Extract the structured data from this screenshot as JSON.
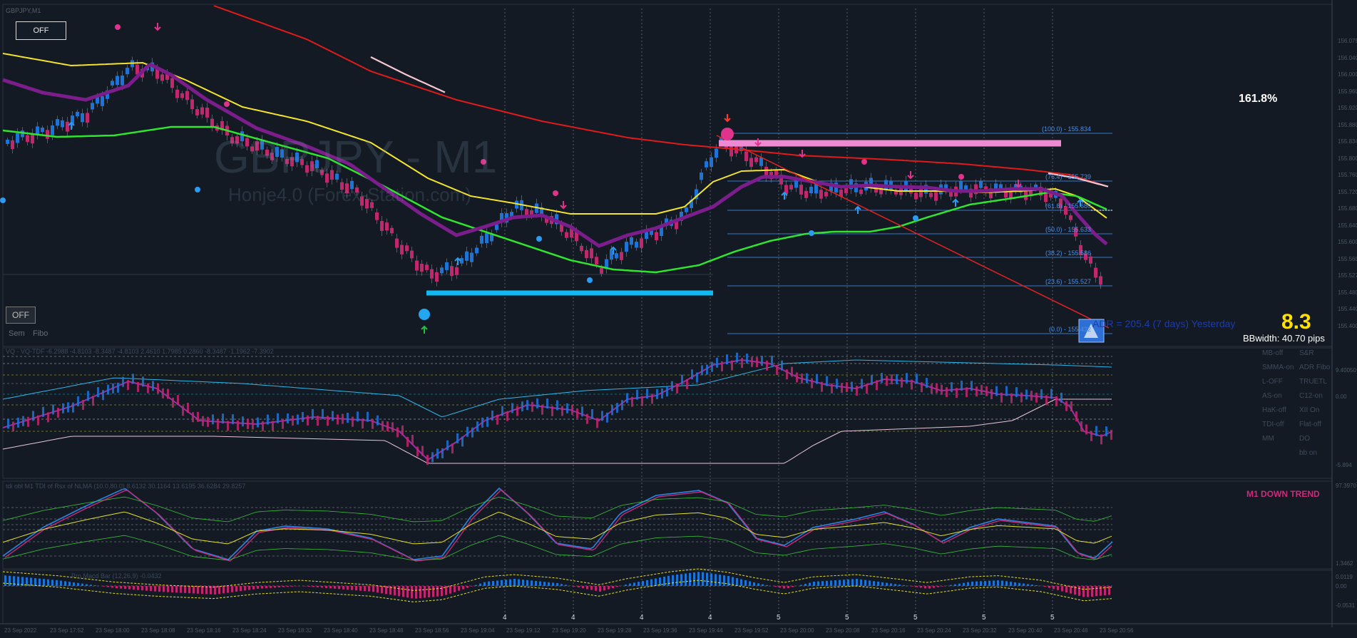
{
  "chart_title": "GBPJPY,M1",
  "watermark": {
    "symbol": "GBPJPY - M1",
    "subtitle": "Honje4.0 (Forex-Station.com)"
  },
  "buttons": {
    "off_top": "OFF",
    "off_bottom": "OFF",
    "sem": "Sem",
    "fibo": "Fibo"
  },
  "fib_percent_label": "161.8%",
  "fib_levels": [
    {
      "label": "(100.0) - 155.834",
      "value": 155.834
    },
    {
      "label": "(76.4) - 155.739",
      "value": 155.739
    },
    {
      "label": "(61.8) - 155.680",
      "value": 155.68
    },
    {
      "label": "(50.0) - 155.633",
      "value": 155.633
    },
    {
      "label": "(38.2) - 155.586",
      "value": 155.586
    },
    {
      "label": "(23.6) - 155.527",
      "value": 155.527
    },
    {
      "label": "(0.0) - 155.432",
      "value": 155.432
    }
  ],
  "adr_text": "ADR = 205.4  (7 days)     Yesterday",
  "big_value": "8.3",
  "bbwidth": "BBwidth: 40.70 pips",
  "trend_label": "M1 DOWN TREND",
  "subwindow_titles": {
    "indicator_1": "VQ - VQ-TDF -6.2988 -4.8103 -8.3487 -4.8103 2.4610 1.7985 0.2860 -8.3487 -1.1962 -7.3902",
    "indicator_2": "tdi obl M1 TDI of Rsx of NLMA (10.0,80.0) 8.6132 30.1164 13.6195 36.6284 29.8257",
    "indicator_3": "Pro Macd Bar (12,26,9) -0.0432"
  },
  "side_labels": [
    [
      "MB-off",
      "S&R"
    ],
    [
      "SMMA-on",
      "ADR Fibo"
    ],
    [
      "L-OFF",
      "TRUETL"
    ],
    [
      "AS-on",
      "C12-on"
    ],
    [
      "HaK-off",
      "XII On"
    ],
    [
      "TDI-off",
      "Flat-off"
    ],
    [
      "MM",
      "DO"
    ],
    [
      "",
      "bb on"
    ]
  ],
  "price_axis_main": [
    "156.075",
    "156.040",
    "156.000",
    "155.960",
    "155.920",
    "155.880",
    "155.834",
    "155.800",
    "155.760",
    "155.720",
    "155.680",
    "155.640",
    "155.600",
    "155.560",
    "155.527",
    "155.480",
    "155.440",
    "155.400"
  ],
  "price_axis_sub1": [
    "9.40050",
    "0.00",
    "-5.894"
  ],
  "price_axis_sub2": [
    "97.3970",
    "1.3462"
  ],
  "price_axis_sub3": [
    "0.0119",
    "0.00",
    "-0.0531"
  ],
  "period_marks": [
    "4",
    "4",
    "4",
    "4",
    "5",
    "5",
    "5",
    "5",
    "5"
  ],
  "time_axis": [
    "23 Sep 2022",
    "23 Sep 17:52",
    "23 Sep 18:00",
    "23 Sep 18:08",
    "23 Sep 18:16",
    "23 Sep 18:24",
    "23 Sep 18:32",
    "23 Sep 18:40",
    "23 Sep 18:48",
    "23 Sep 18:56",
    "23 Sep 19:04",
    "23 Sep 19:12",
    "23 Sep 19:20",
    "23 Sep 19:28",
    "23 Sep 19:36",
    "23 Sep 19:44",
    "23 Sep 19:52",
    "23 Sep 20:00",
    "23 Sep 20:08",
    "23 Sep 20:16",
    "23 Sep 20:24",
    "23 Sep 20:32",
    "23 Sep 20:40",
    "23 Sep 20:48",
    "23 Sep 20:56"
  ],
  "colors": {
    "background": "#131a24",
    "bull_candle": "#1e73d6",
    "bear_candle": "#c0276d",
    "ma_red": "#e21a1a",
    "ma_yellow": "#f5e52a",
    "ma_green": "#2fe52f",
    "ma_purple": "#7b1d8a",
    "fib_line": "#3f87e0",
    "support_line": "#10b9f2",
    "resistance_line": "#ee8ad1",
    "trend_text": "#cc2b7a",
    "adr_value": "#ffe000"
  }
}
